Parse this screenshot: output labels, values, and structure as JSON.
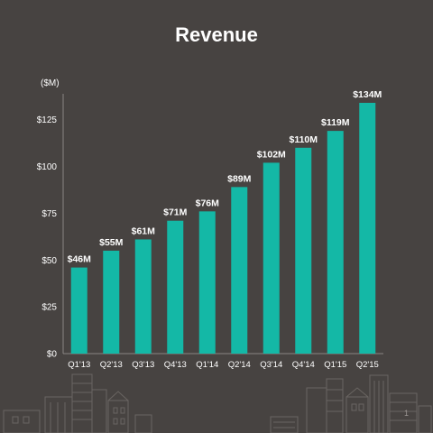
{
  "slide": {
    "title": "Revenue",
    "unit_label": "($M)",
    "page_number": "1"
  },
  "colors": {
    "background": "#474341",
    "bar": "#14b8a6",
    "text": "#ffffff",
    "axis": "#8a8582",
    "skyline": "#6a6562"
  },
  "chart_data": {
    "type": "bar",
    "title": "Revenue",
    "ylabel": "($M)",
    "xlabel": "",
    "categories": [
      "Q1'13",
      "Q2'13",
      "Q3'13",
      "Q4'13",
      "Q1'14",
      "Q2'14",
      "Q3'14",
      "Q4'14",
      "Q1'15",
      "Q2'15"
    ],
    "values": [
      46,
      55,
      61,
      71,
      76,
      89,
      102,
      110,
      119,
      134
    ],
    "data_labels": [
      "$46M",
      "$55M",
      "$61M",
      "$71M",
      "$76M",
      "$89M",
      "$102M",
      "$110M",
      "$119M",
      "$134M"
    ],
    "ylim": [
      0,
      134
    ],
    "yticks": [
      0,
      25,
      50,
      75,
      100,
      125
    ],
    "ytick_labels": [
      "$0",
      "$25",
      "$50",
      "$75",
      "$100",
      "$125"
    ],
    "grid": false,
    "legend": "none"
  }
}
